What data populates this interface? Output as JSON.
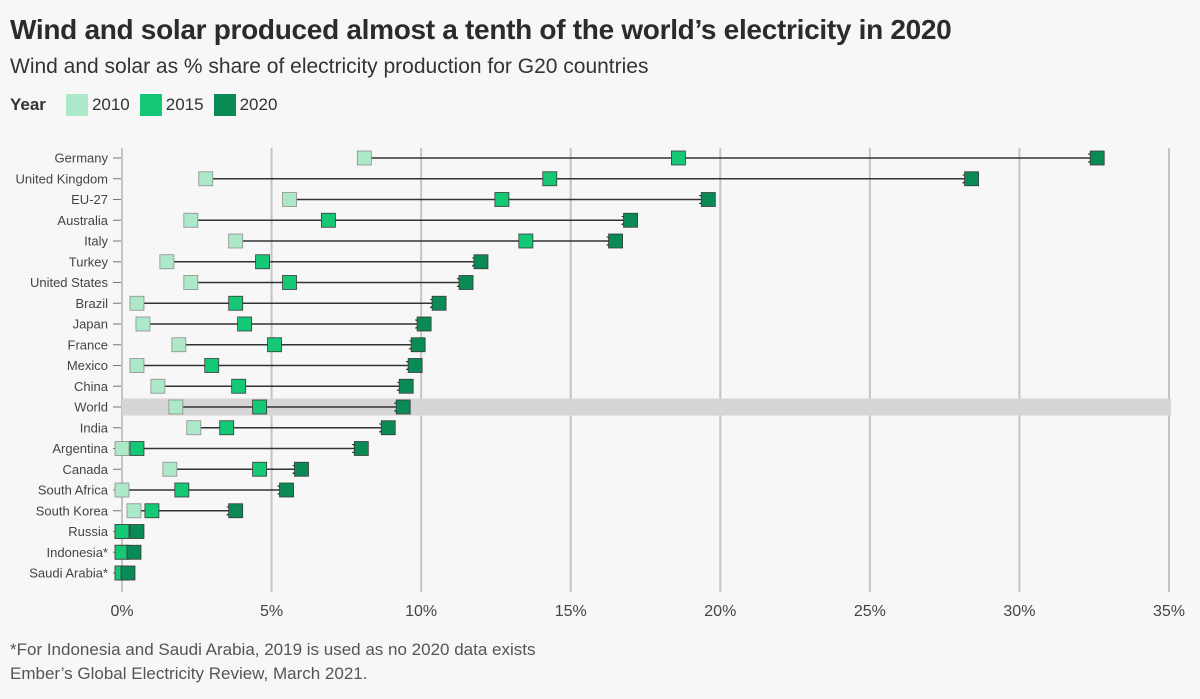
{
  "title": "Wind and solar produced almost a tenth of the world’s electricity in 2020",
  "subtitle": "Wind and solar as % share of electricity production for G20 countries",
  "legend": {
    "title": "Year",
    "items": [
      {
        "label": "2010",
        "color": "#ade9c9"
      },
      {
        "label": "2015",
        "color": "#15c876"
      },
      {
        "label": "2020",
        "color": "#0a8a55"
      }
    ]
  },
  "footnotes": {
    "note": "*For Indonesia and Saudi Arabia, 2019 is used as no 2020 data exists",
    "source": "Ember’s Global Electricity Review, March 2021."
  },
  "chart_data": {
    "type": "dot-arrow",
    "title": "Wind and solar produced almost a tenth of the world’s electricity in 2020",
    "xlabel": "",
    "ylabel": "",
    "xlim": [
      0,
      35
    ],
    "x_ticks": [
      0,
      5,
      10,
      15,
      20,
      25,
      30,
      35
    ],
    "x_tick_labels": [
      "0%",
      "5%",
      "10%",
      "15%",
      "20%",
      "25%",
      "30%",
      "35%"
    ],
    "highlight": "World",
    "categories": [
      "Germany",
      "United Kingdom",
      "EU-27",
      "Australia",
      "Italy",
      "Turkey",
      "United States",
      "Brazil",
      "Japan",
      "France",
      "Mexico",
      "China",
      "World",
      "India",
      "Argentina",
      "Canada",
      "South Africa",
      "South Korea",
      "Russia",
      "Indonesia*",
      "Saudi Arabia*"
    ],
    "series": [
      {
        "name": "2010",
        "values": [
          8.1,
          2.8,
          5.6,
          2.3,
          3.8,
          1.5,
          2.3,
          0.5,
          0.7,
          1.9,
          0.5,
          1.2,
          1.8,
          2.4,
          0.0,
          1.6,
          0.0,
          0.4,
          0.0,
          0.0,
          0.0
        ]
      },
      {
        "name": "2015",
        "values": [
          18.6,
          14.3,
          12.7,
          6.9,
          13.5,
          4.7,
          5.6,
          3.8,
          4.1,
          5.1,
          3.0,
          3.9,
          4.6,
          3.5,
          0.5,
          4.6,
          2.0,
          1.0,
          0.0,
          0.0,
          0.0
        ]
      },
      {
        "name": "2020",
        "values": [
          32.6,
          28.4,
          19.6,
          17.0,
          16.5,
          12.0,
          11.5,
          10.6,
          10.1,
          9.9,
          9.8,
          9.5,
          9.4,
          8.9,
          8.0,
          6.0,
          5.5,
          3.8,
          0.5,
          0.4,
          0.2
        ]
      }
    ]
  }
}
